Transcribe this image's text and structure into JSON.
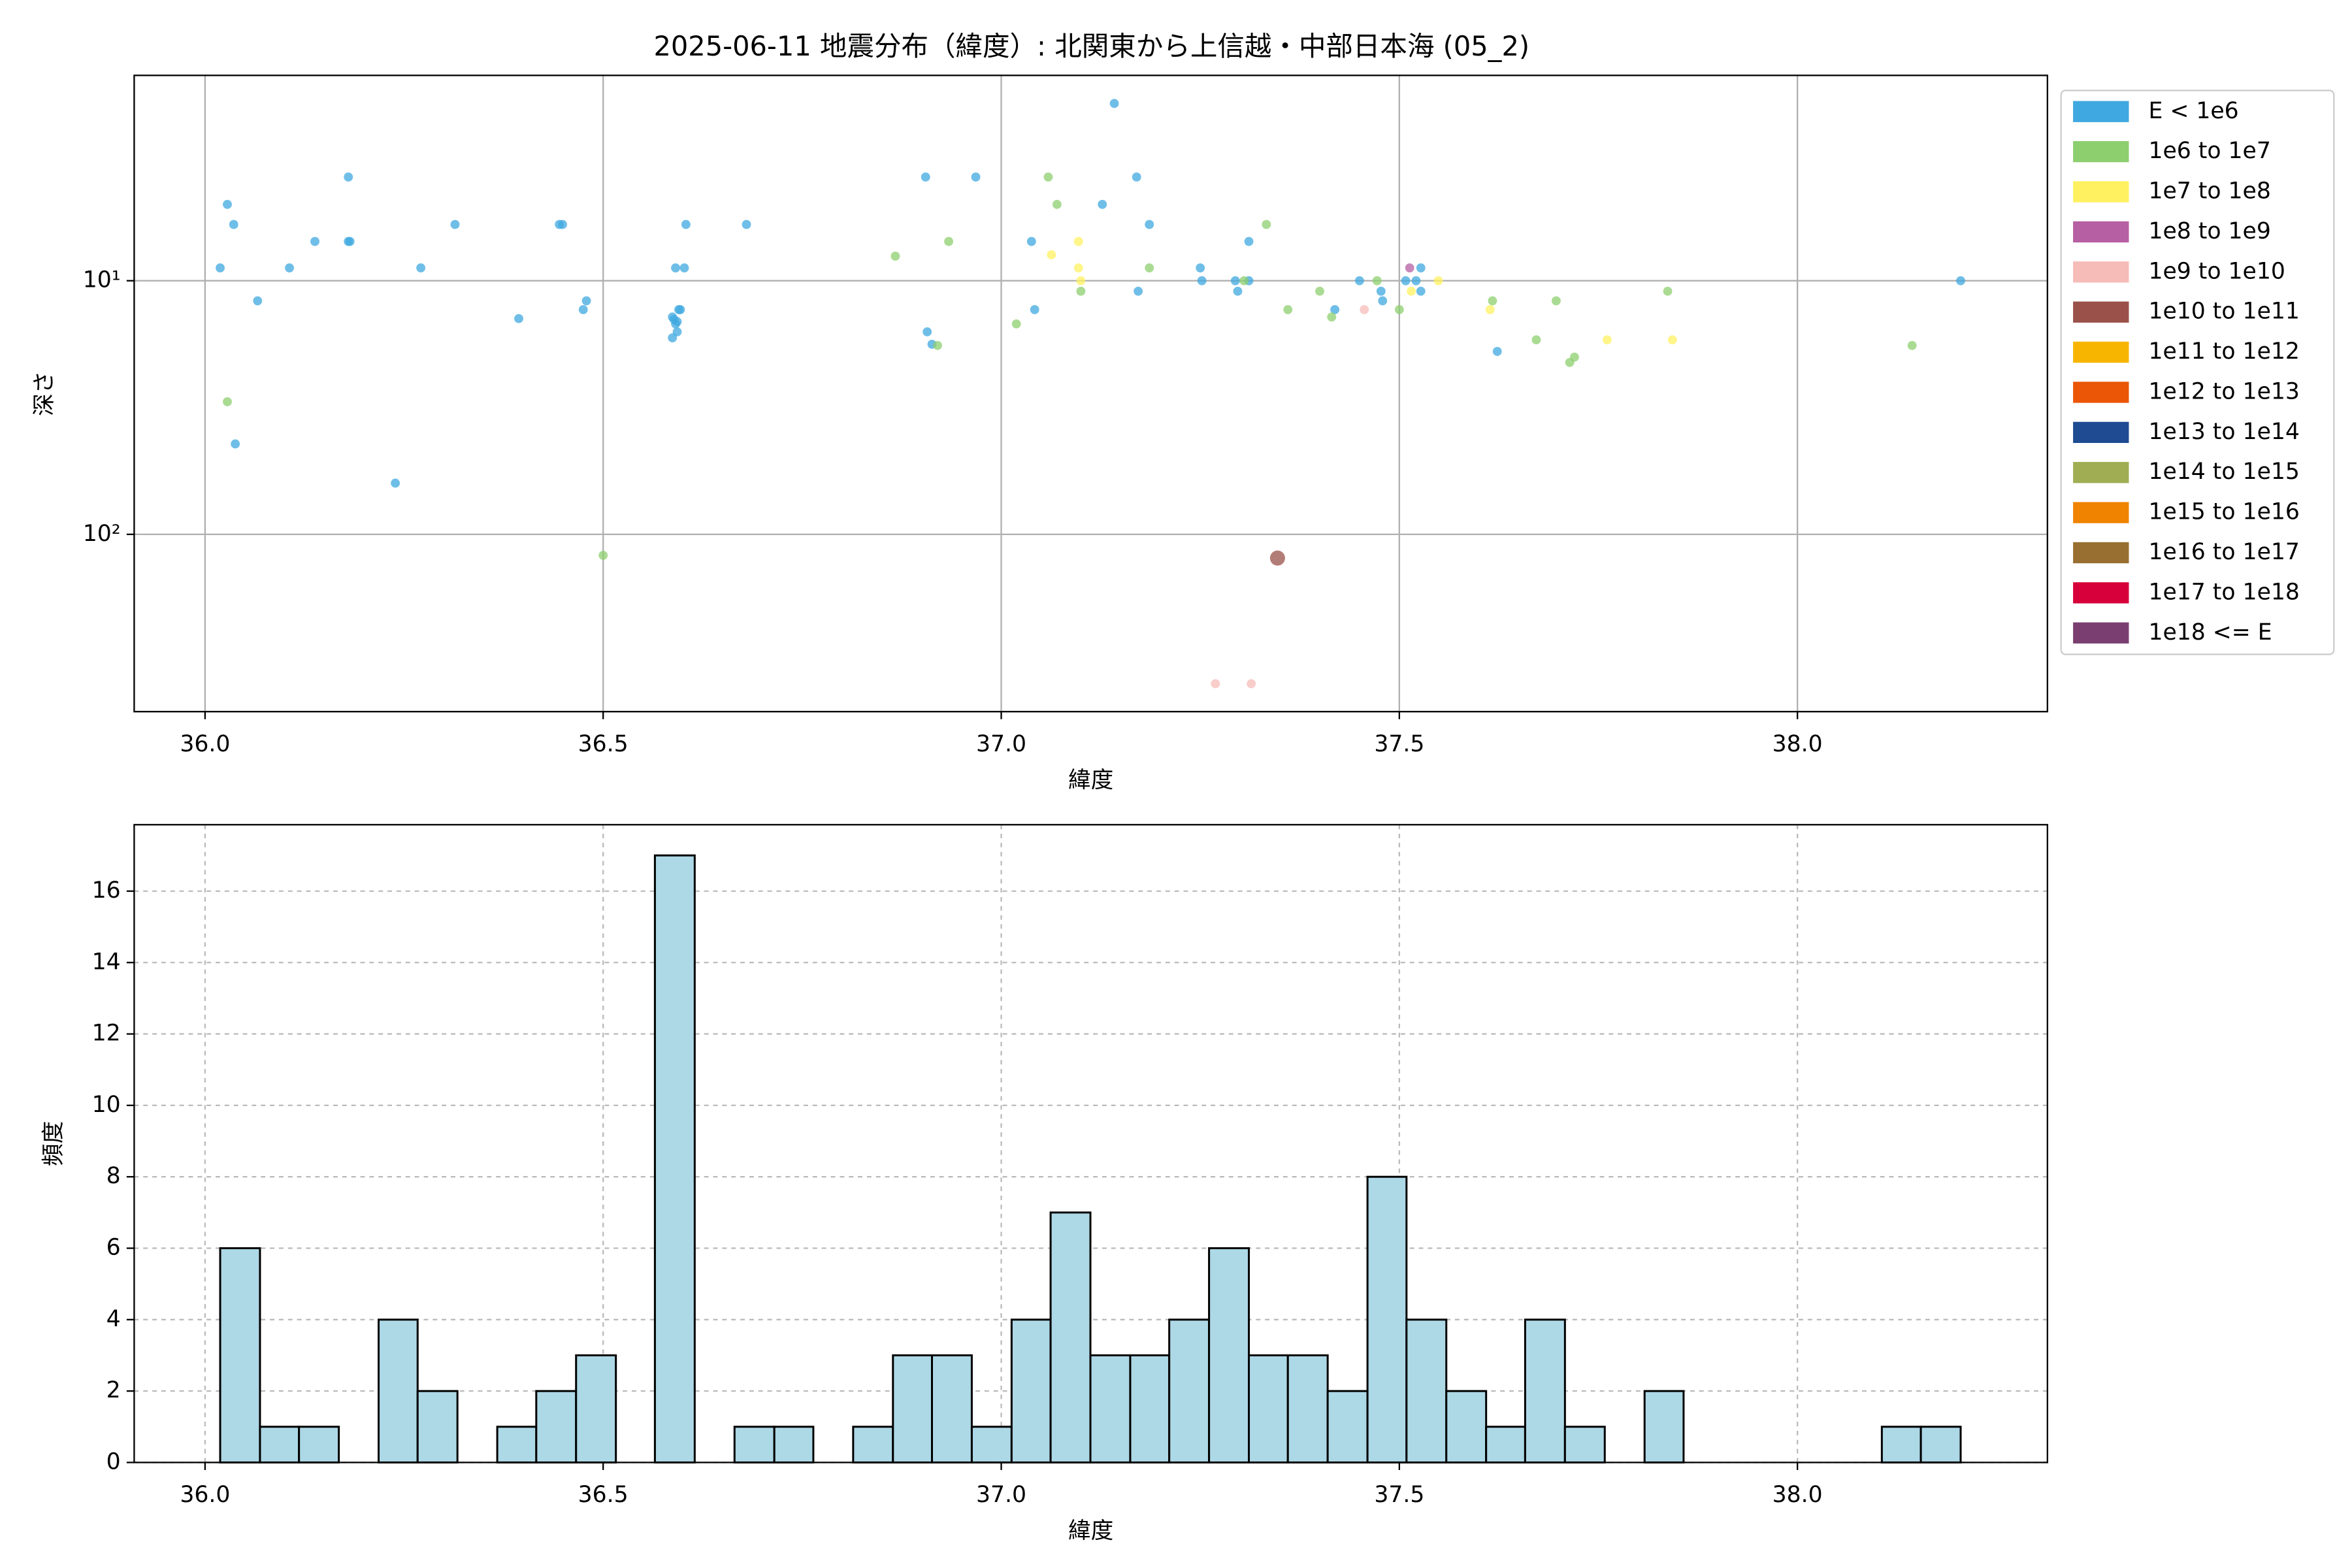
{
  "chart_data": [
    {
      "type": "scatter",
      "title": "2025-06-11 地震分布（緯度）: 北関東から上信越・中部日本海 (05_2)",
      "xlabel": "緯度",
      "ylabel": "深さ",
      "xlim": [
        35.911,
        38.314
      ],
      "xticks": [
        {
          "value": 36,
          "label": "36.0"
        },
        36.5,
        {
          "value": 37,
          "label": "37.0"
        },
        37.5,
        {
          "value": 38,
          "label": "38.0"
        }
      ],
      "ylim": [
        1.55,
        500
      ],
      "y_log": true,
      "y_inverted": true,
      "yticks": [
        {
          "value": 10,
          "label": "10¹"
        },
        {
          "value": 100,
          "label": "10²"
        }
      ],
      "grid": true,
      "legend": "outside-right",
      "series": [
        {
          "name": "E < 1e6",
          "color": "#3fa8e0",
          "x": [
            36.019,
            36.028,
            36.036,
            36.038,
            36.066,
            36.106,
            36.138,
            36.18,
            36.18,
            36.182,
            36.239,
            36.271,
            36.314,
            36.394,
            36.445,
            36.449,
            36.475,
            36.479,
            36.587,
            36.587,
            36.589,
            36.591,
            36.593,
            36.593,
            36.595,
            36.597,
            36.591,
            36.602,
            36.604,
            36.68,
            36.905,
            36.907,
            36.913,
            36.968,
            37.038,
            37.042,
            37.127,
            37.142,
            37.17,
            37.172,
            37.186,
            37.25,
            37.252,
            37.294,
            37.297,
            37.311,
            37.311,
            37.419,
            37.45,
            37.477,
            37.479,
            37.508,
            37.521,
            37.527,
            37.527,
            37.623,
            38.205
          ],
          "y": [
            8.9,
            5,
            6,
            44,
            12,
            8.9,
            7,
            3.9,
            7,
            7,
            62.8,
            8.9,
            6,
            14.1,
            6,
            6,
            13,
            12,
            16.8,
            13.9,
            14.2,
            14.8,
            14.5,
            15.9,
            13,
            13,
            8.9,
            8.9,
            6,
            6,
            3.9,
            15.9,
            17.8,
            3.9,
            7,
            13,
            5,
            2,
            3.9,
            11,
            6,
            8.9,
            10,
            10,
            11,
            7,
            10,
            13,
            10,
            11,
            12,
            10,
            10,
            11,
            8.9,
            19,
            10
          ]
        },
        {
          "name": "1e6 to 1e7",
          "color": "#8dcf6f",
          "x": [
            36.028,
            36.5,
            36.867,
            36.92,
            36.934,
            37.019,
            37.059,
            37.07,
            37.1,
            37.186,
            37.305,
            37.333,
            37.36,
            37.4,
            37.415,
            37.472,
            37.5,
            37.617,
            37.672,
            37.697,
            37.714,
            37.72,
            37.837,
            38.144
          ],
          "y": [
            30,
            121,
            8,
            18,
            7,
            14.8,
            3.9,
            5,
            11,
            8.9,
            10,
            6,
            13,
            11,
            13.9,
            10,
            13,
            12,
            17.1,
            12,
            21,
            20,
            11,
            18
          ]
        },
        {
          "name": "1e7 to 1e8",
          "color": "#fff160",
          "x": [
            37.063,
            37.097,
            37.097,
            37.1,
            37.515,
            37.549,
            37.614,
            37.761,
            37.843
          ],
          "y": [
            7.9,
            7,
            8.9,
            10,
            11,
            10,
            13,
            17.1,
            17.1
          ]
        },
        {
          "name": "1e8 to 1e9",
          "color": "#b65fa3",
          "x": [
            37.513
          ],
          "y": [
            8.9
          ]
        },
        {
          "name": "1e9 to 1e10",
          "color": "#f6bcb8",
          "x": [
            37.456,
            37.269,
            37.314
          ],
          "y": [
            13,
            388,
            388
          ]
        },
        {
          "name": "1e10 to 1e11",
          "color": "#9a5149",
          "x": [
            37.347
          ],
          "y": [
            124
          ]
        },
        {
          "name": "1e11 to 1e12",
          "color": "#f8b500",
          "x": [],
          "y": []
        },
        {
          "name": "1e12 to 1e13",
          "color": "#ea5506",
          "x": [],
          "y": []
        },
        {
          "name": "1e13 to 1e14",
          "color": "#1e4b92",
          "x": [],
          "y": []
        },
        {
          "name": "1e14 to 1e15",
          "color": "#a0ad53",
          "x": [],
          "y": []
        },
        {
          "name": "1e15 to 1e16",
          "color": "#f08300",
          "x": [],
          "y": []
        },
        {
          "name": "1e16 to 1e17",
          "color": "#986f30",
          "x": [],
          "y": []
        },
        {
          "name": "1e17 to 1e18",
          "color": "#d7003a",
          "x": [],
          "y": []
        },
        {
          "name": "1e18 <= E",
          "color": "#7a3f70",
          "x": [],
          "y": []
        }
      ]
    },
    {
      "type": "histogram",
      "xlabel": "緯度",
      "ylabel": "頻度",
      "xlim": [
        35.911,
        38.314
      ],
      "xticks": [
        {
          "value": 36,
          "label": "36.0"
        },
        36.5,
        {
          "value": 37,
          "label": "37.0"
        },
        37.5,
        {
          "value": 38,
          "label": "38.0"
        }
      ],
      "ylim": [
        0,
        17.86
      ],
      "yticks": [
        0,
        2,
        4,
        6,
        8,
        10,
        12,
        14,
        16
      ],
      "grid": true,
      "color": "#add8e6",
      "edgecolor": "#000000",
      "bins": [
        36.019,
        36.069,
        36.118,
        36.168,
        36.218,
        36.267,
        36.317,
        36.367,
        36.416,
        36.466,
        36.516,
        36.565,
        36.615,
        36.665,
        36.715,
        36.764,
        36.814,
        36.864,
        36.913,
        36.963,
        37.013,
        37.062,
        37.112,
        37.162,
        37.211,
        37.261,
        37.311,
        37.36,
        37.41,
        37.46,
        37.509,
        37.559,
        37.609,
        37.658,
        37.708,
        37.758,
        37.808,
        37.857,
        37.907,
        37.957,
        38.006,
        38.056,
        38.106,
        38.155,
        38.205
      ],
      "values": [
        6,
        1,
        1,
        0,
        4,
        2,
        0,
        1,
        2,
        3,
        0,
        17,
        0,
        1,
        1,
        0,
        1,
        3,
        3,
        1,
        4,
        7,
        3,
        3,
        4,
        6,
        3,
        3,
        2,
        8,
        4,
        2,
        1,
        4,
        1,
        0,
        2,
        0,
        0,
        0,
        0,
        0,
        1,
        1
      ]
    }
  ]
}
